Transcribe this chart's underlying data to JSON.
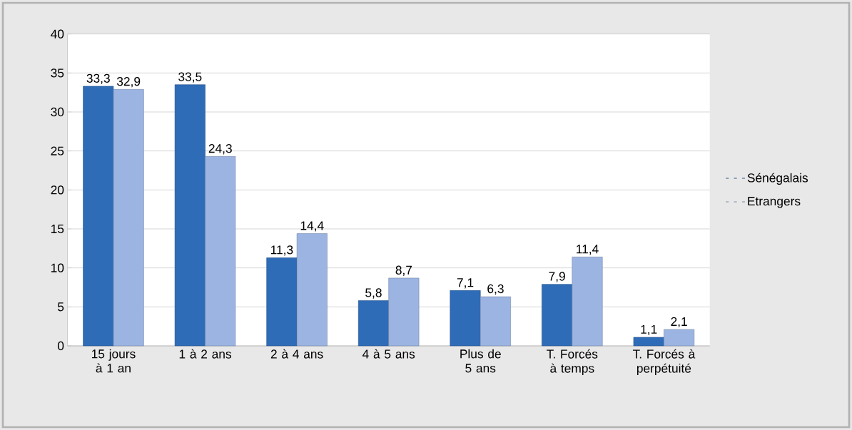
{
  "chart_data": {
    "type": "bar",
    "categories": [
      "15 jours à 1 an",
      "1 à 2 ans",
      "2 à 4 ans",
      "4 à 5 ans",
      "Plus de 5 ans",
      "T. Forcés à temps",
      "T. Forcés à perpétuité"
    ],
    "series": [
      {
        "name": "Sénégalais",
        "color": "#2f6cb8",
        "values": [
          33.3,
          33.5,
          11.3,
          5.8,
          7.1,
          7.9,
          1.1
        ],
        "value_labels": [
          "33,3",
          "33,5",
          "11,3",
          "5,8",
          "7,1",
          "7,9",
          "1,1"
        ]
      },
      {
        "name": "Etrangers",
        "color": "#9cb4e2",
        "values": [
          32.9,
          24.3,
          14.4,
          8.7,
          6.3,
          11.4,
          2.1
        ],
        "value_labels": [
          "32,9",
          "24,3",
          "14,4",
          "8,7",
          "6,3",
          "11,4",
          "2,1"
        ]
      }
    ],
    "ylim": [
      0,
      40
    ],
    "yticks": [
      0,
      5,
      10,
      15,
      20,
      25,
      30,
      35,
      40
    ],
    "grid": "y",
    "legend": "right"
  }
}
